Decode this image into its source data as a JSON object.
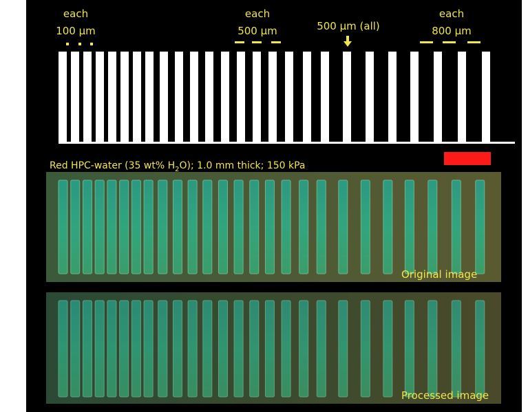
{
  "labels": {
    "group_100": {
      "line1": "each",
      "line2": "100 µm"
    },
    "group_500": {
      "line1": "each",
      "line2": "500 µm"
    },
    "all_500": "500 µm (all)",
    "group_800": {
      "line1": "each",
      "line2": "800 µm"
    }
  },
  "caption": {
    "before": "Red HPC-water (35 wt% H",
    "subscript": "2",
    "after": "O); 1.0 mm thick; 150 kPa"
  },
  "panels": {
    "original": "Original image",
    "processed": "Processed image"
  }
}
